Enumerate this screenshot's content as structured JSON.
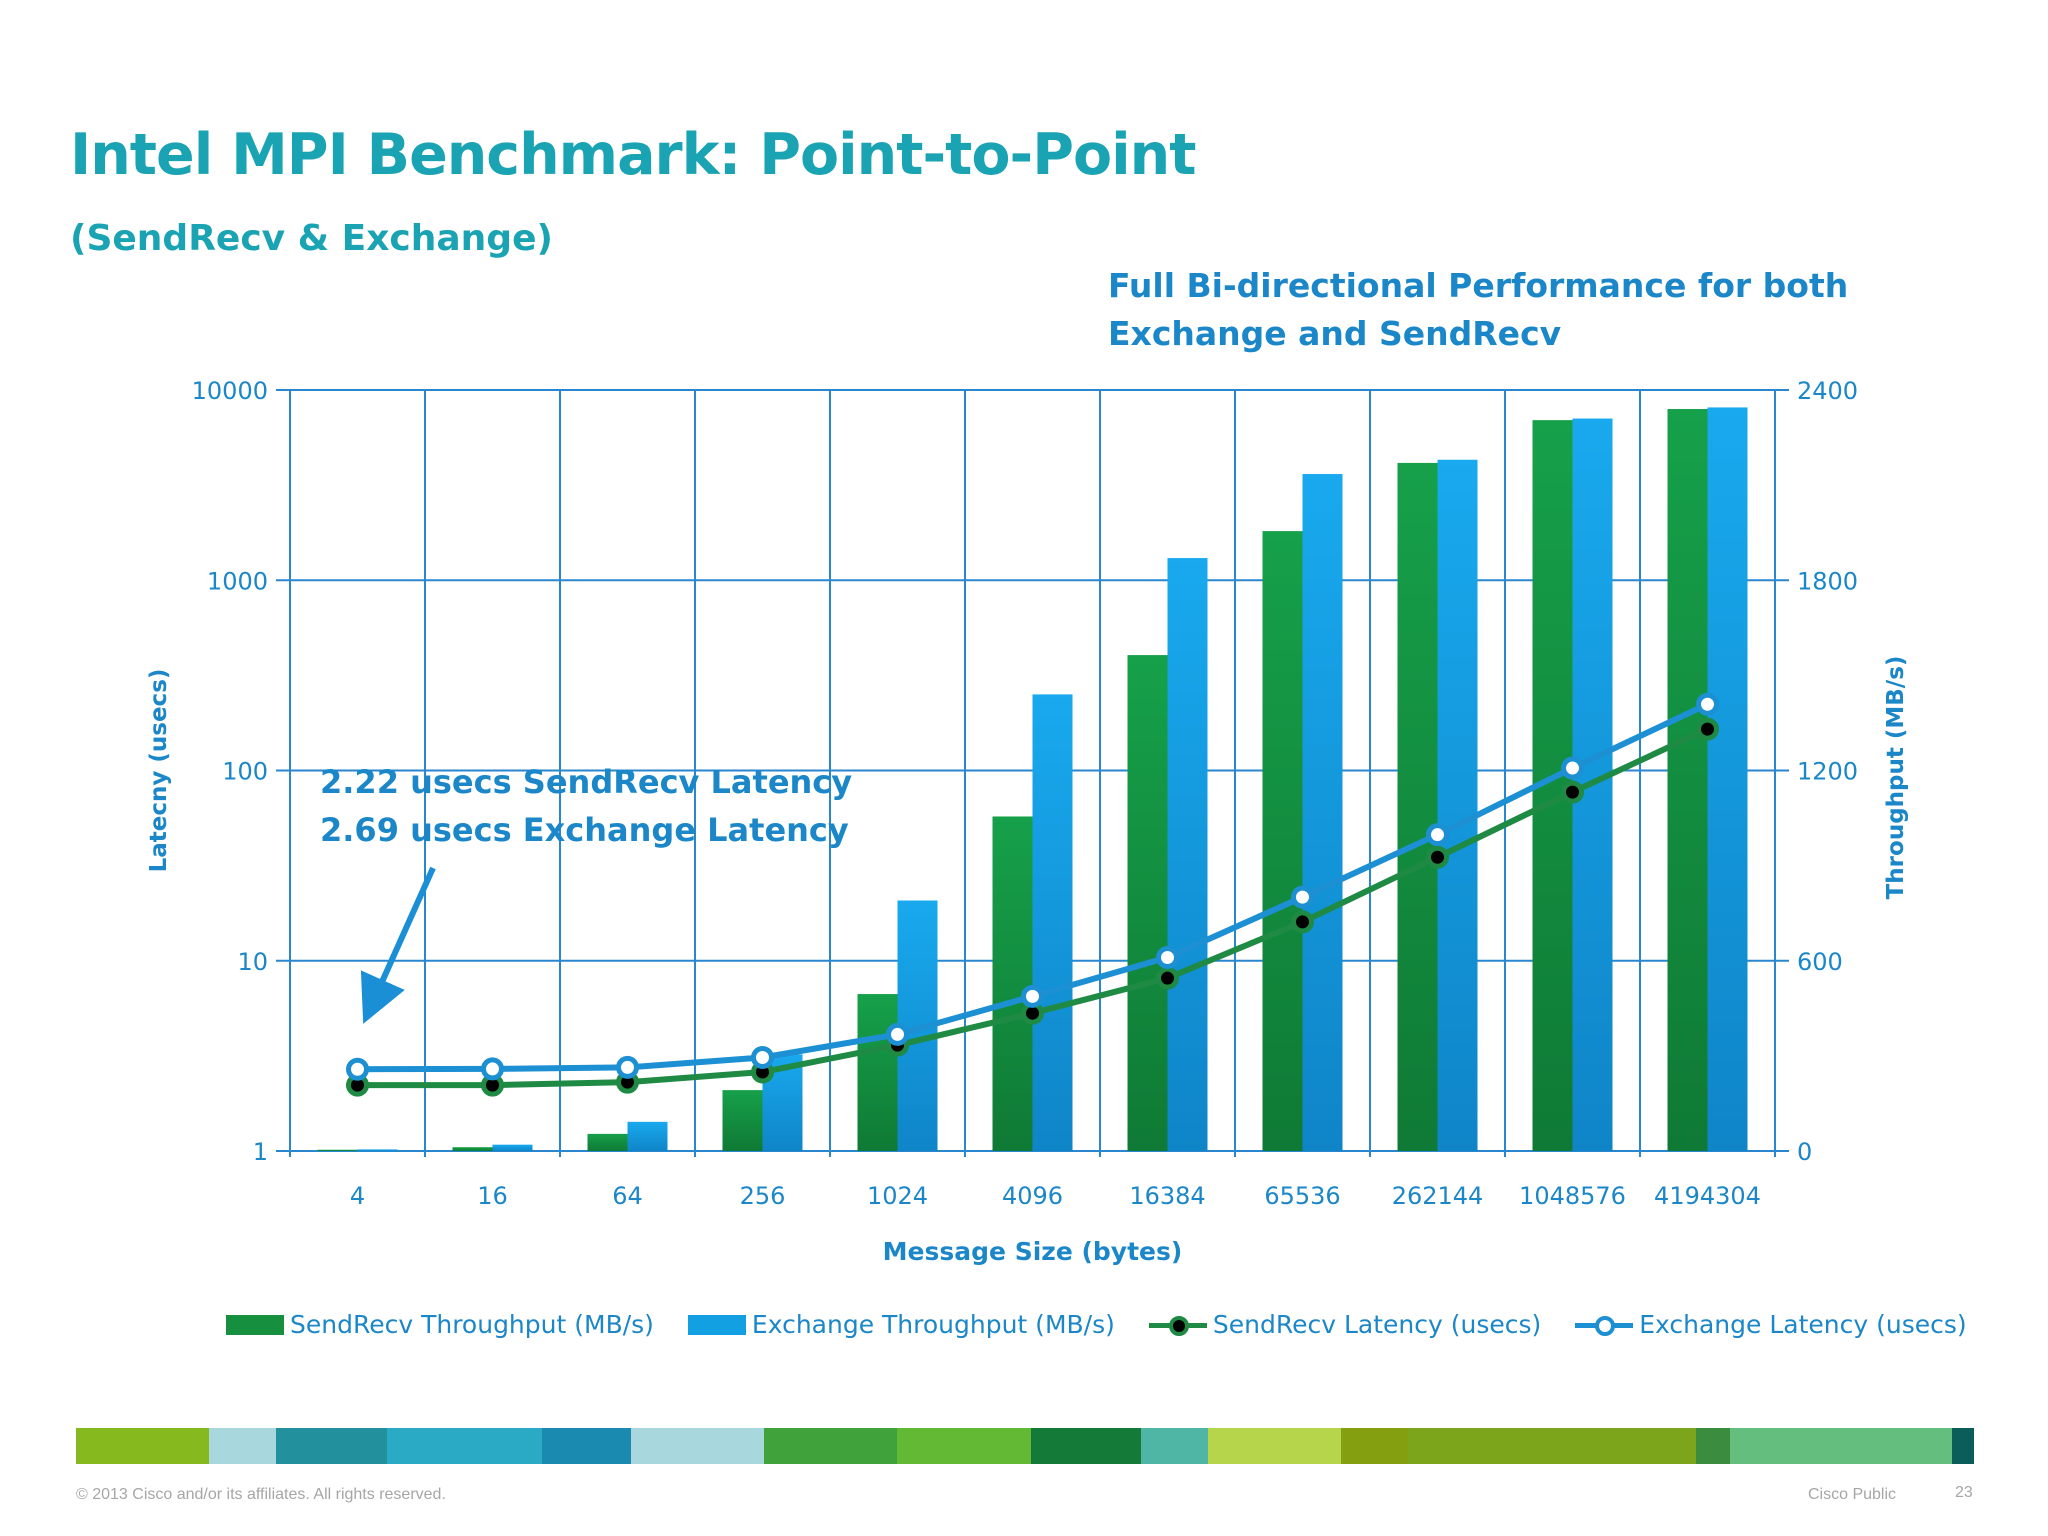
{
  "slide": {
    "title": "Intel MPI Benchmark: Point-to-Point",
    "subtitle": "(SendRecv & Exchange)",
    "callout_line1": "Full Bi-directional Performance for both",
    "callout_line2": "Exchange and SendRecv",
    "annotation_line1": "2.22 usecs SendRecv Latency",
    "annotation_line2": "2.69 usecs Exchange Latency",
    "footer_copyright": "© 2013 Cisco and/or its affiliates. All rights reserved.",
    "footer_label": "Cisco Public",
    "page_number": "23"
  },
  "colors": {
    "title": "#1aa3b2",
    "text_blue": "#1b87c8",
    "sendrecv_green": "#168f3e",
    "exchange_blue": "#13a0e2",
    "sendrecv_line": "#1e8a44",
    "exchange_line": "#1d8fd3",
    "grid": "#2a86cf",
    "band": [
      "#86b91d",
      "#a8d8dd",
      "#23909e",
      "#2aaac5",
      "#1a8ab0",
      "#a8d8dd",
      "#3fa23a",
      "#64b934",
      "#137a37",
      "#4fb6a6",
      "#b7d54b",
      "#849f0f",
      "#7ca51b",
      "#3b8c3f",
      "#64bf7e",
      "#0b5d5a"
    ]
  },
  "chart_data": {
    "type": "bar",
    "categories": [
      "4",
      "16",
      "64",
      "256",
      "1024",
      "4096",
      "16384",
      "65536",
      "262144",
      "1048576",
      "4194304"
    ],
    "xlabel": "Message Size (bytes)",
    "ylabel_left": "Latecny (usecs)",
    "ylabel_right": "Throughput (MB/s)",
    "y_left_scale": "log",
    "y_left_range": [
      1,
      10000
    ],
    "y_left_ticks": [
      "1",
      "10",
      "100",
      "1000",
      "10000"
    ],
    "y_right_range": [
      0,
      2400
    ],
    "y_right_ticks": [
      "0",
      "600",
      "1200",
      "1800",
      "2400"
    ],
    "grid": true,
    "legend_position": "bottom",
    "series": [
      {
        "name": "SendRecv Throughput (MB/s)",
        "kind": "bar",
        "axis": "right",
        "values": [
          4,
          12,
          54,
          192,
          495,
          1055,
          1564,
          1955,
          2170,
          2305,
          2340
        ]
      },
      {
        "name": "Exchange Throughput (MB/s)",
        "kind": "bar",
        "axis": "right",
        "values": [
          5,
          20,
          92,
          305,
          790,
          1440,
          1870,
          2135,
          2180,
          2310,
          2345
        ]
      },
      {
        "name": "SendRecv Latency (usecs)",
        "kind": "line",
        "axis": "left",
        "values": [
          2.22,
          2.22,
          2.3,
          2.6,
          3.6,
          5.3,
          8.1,
          16,
          35,
          77,
          165
        ]
      },
      {
        "name": "Exchange Latency (usecs)",
        "kind": "line",
        "axis": "left",
        "values": [
          2.69,
          2.7,
          2.75,
          3.1,
          4.1,
          6.5,
          10.4,
          21.6,
          46,
          103,
          223
        ]
      }
    ]
  }
}
